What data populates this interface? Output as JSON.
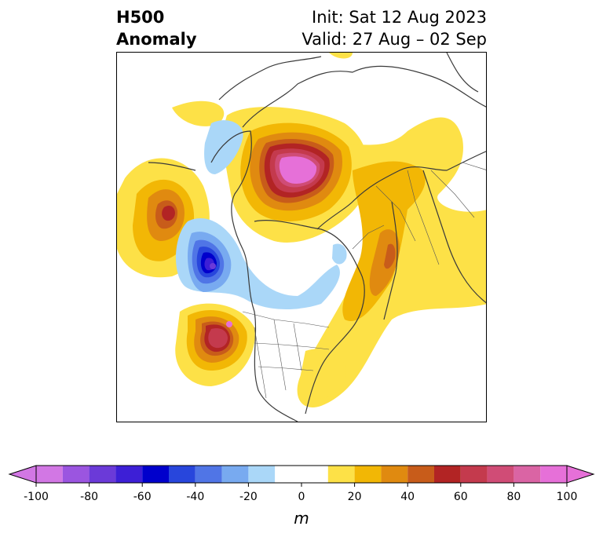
{
  "title": {
    "left_line1": "H500",
    "left_line2": "Anomaly",
    "right_line1": "Init: Sat 12 Aug 2023",
    "right_line2": "Valid: 27 Aug – 02 Sep"
  },
  "colorbar": {
    "ticks": [
      "-100",
      "-80",
      "-60",
      "-40",
      "-20",
      "0",
      "20",
      "40",
      "60",
      "80",
      "100"
    ],
    "unit": "m",
    "levels": [
      -100,
      -90,
      -80,
      -70,
      -60,
      -50,
      -40,
      -30,
      -20,
      -10,
      10,
      20,
      30,
      40,
      50,
      60,
      70,
      80,
      90,
      100
    ],
    "colors": [
      "#d277e4",
      "#9b55e0",
      "#6b3ad8",
      "#3d1fd6",
      "#0000cc",
      "#2846dc",
      "#5075e6",
      "#78aaf0",
      "#aad7f8",
      "#ffffff",
      "#fde147",
      "#f2b705",
      "#e08a10",
      "#c85c1a",
      "#b22424",
      "#c43a4d",
      "#d04c76",
      "#da64a4",
      "#e670d8"
    ],
    "under_color": "#d277e4",
    "over_color": "#e670d8"
  },
  "map": {
    "projection": "polar-stereographic",
    "region": "North America / Northern Hemisphere"
  }
}
